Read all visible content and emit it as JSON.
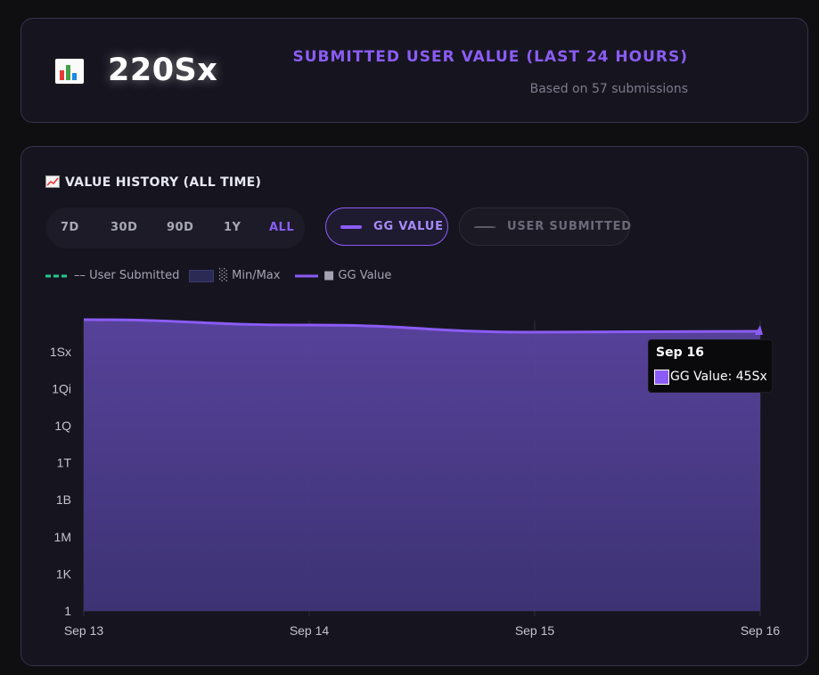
{
  "stat": {
    "value": "220Sx",
    "title": "SUBMITTED USER VALUE (LAST 24 HOURS)",
    "subtitle": "Based on 57 submissions",
    "icon": "bar-chart-icon"
  },
  "history": {
    "title": "VALUE HISTORY (ALL TIME)",
    "icon": "chart-increasing-icon",
    "ranges": [
      "7D",
      "30D",
      "90D",
      "1Y",
      "ALL"
    ],
    "active_range": "ALL",
    "toggles": {
      "gg_label": "GG VALUE",
      "user_label": "USER SUBMITTED"
    },
    "legend": [
      {
        "label": "–– User Submitted",
        "color": "#22c98c"
      },
      {
        "label": "░ Min/Max",
        "color": "#2b2a55"
      },
      {
        "label": "■ GG Value",
        "color": "#8b5cf6"
      }
    ],
    "tooltip": {
      "title": "Sep 16",
      "body": "GG Value: 45Sx"
    }
  },
  "colors": {
    "accent": "#8b5cf6",
    "area_fill": "#4c3a86",
    "user_submitted": "#22c98c"
  },
  "chart_data": {
    "type": "area",
    "x": [
      "Sep 13",
      "Sep 14",
      "Sep 15",
      "Sep 16"
    ],
    "y_tick_labels": [
      "1",
      "1K",
      "1M",
      "1B",
      "1T",
      "1Q",
      "1Qi",
      "1Sx"
    ],
    "y_scale": "log",
    "series": [
      {
        "name": "GG Value",
        "values": [
          "~160Sx",
          "~100Sx",
          "~45Sx",
          "45Sx"
        ]
      }
    ],
    "grid": true,
    "legend_position": "top-left"
  }
}
